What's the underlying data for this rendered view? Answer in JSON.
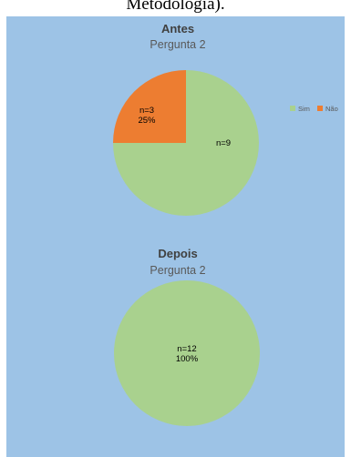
{
  "caption": "Metodologia).",
  "colors": {
    "background": "#9dc3e6",
    "sim": "#a9d18e",
    "nao": "#ed7d31"
  },
  "legend": {
    "placement": "right",
    "items": [
      {
        "label": "Sim",
        "color": "#a9d18e"
      },
      {
        "label": "Não",
        "color": "#ed7d31"
      }
    ]
  },
  "chart_data": [
    {
      "type": "pie",
      "title": "Antes",
      "subtitle": "Pergunta 2",
      "categories": [
        "Sim",
        "Não"
      ],
      "values": [
        9,
        3
      ],
      "labels": [
        {
          "line1": "n=9",
          "line2": ""
        },
        {
          "line1": "n=3",
          "line2": "25%"
        }
      ]
    },
    {
      "type": "pie",
      "title": "Depois",
      "subtitle": "Pergunta 2",
      "categories": [
        "Sim"
      ],
      "values": [
        12
      ],
      "labels": [
        {
          "line1": "n=12",
          "line2": "100%"
        }
      ]
    }
  ]
}
